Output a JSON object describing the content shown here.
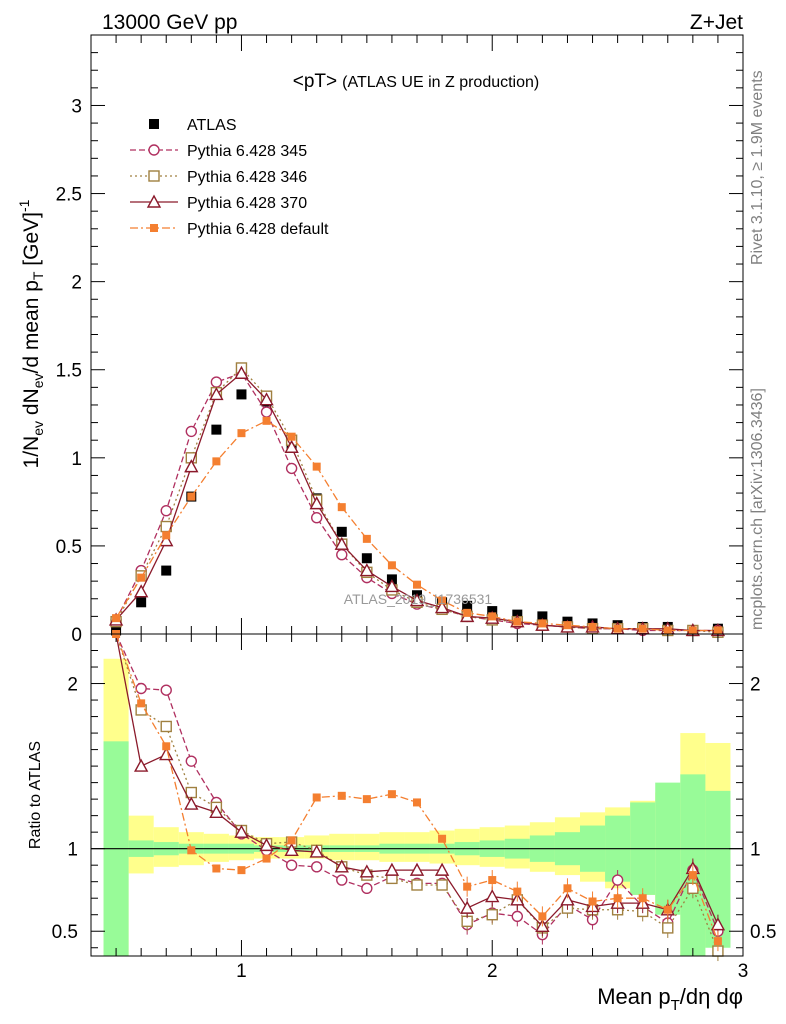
{
  "header": {
    "left": "13000 GeV pp",
    "right": "Z+Jet"
  },
  "side_text": {
    "rivet": "Rivet 3.1.10, ≥ 1.9M events",
    "mcplots": "mcplots.cern.ch [arXiv:1306.3436]"
  },
  "watermark": "ATLAS_2019_I1736531",
  "chart_data": [
    {
      "type": "scatter",
      "title": "<pT>",
      "subtitle": "(ATLAS UE in Z production)",
      "xlabel": "",
      "ylabel": "1/N_ev dN_ev/d mean p_T [GeV]^-1",
      "xlim": [
        0.4,
        3.0
      ],
      "ylim": [
        0,
        3.4
      ],
      "yticks": [
        0,
        0.5,
        1,
        1.5,
        2,
        2.5,
        3
      ],
      "ytick_labels": [
        "0",
        "0.5",
        "1",
        "1.5",
        "2",
        "2.5",
        "3"
      ],
      "x": [
        0.5,
        0.6,
        0.7,
        0.8,
        0.9,
        1.0,
        1.1,
        1.2,
        1.3,
        1.4,
        1.5,
        1.6,
        1.7,
        1.8,
        1.9,
        2.0,
        2.1,
        2.2,
        2.3,
        2.4,
        2.5,
        2.6,
        2.7,
        2.8,
        2.9
      ],
      "series": [
        {
          "name": "ATLAS",
          "style": "data",
          "color": "#000000",
          "values": [
            0.02,
            0.18,
            0.36,
            0.78,
            1.16,
            1.36,
            1.32,
            1.06,
            0.77,
            0.58,
            0.43,
            0.31,
            0.22,
            0.18,
            0.16,
            0.13,
            0.11,
            0.1,
            0.07,
            0.06,
            0.05,
            0.04,
            0.04,
            0.02,
            0.03
          ]
        },
        {
          "name": "Pythia 6.428 345",
          "style": "circle-dashed",
          "color": "#b03060",
          "values": [
            0.08,
            0.36,
            0.7,
            1.15,
            1.43,
            1.48,
            1.26,
            0.94,
            0.66,
            0.45,
            0.32,
            0.23,
            0.17,
            0.14,
            0.1,
            0.08,
            0.06,
            0.05,
            0.04,
            0.03,
            0.03,
            0.02,
            0.02,
            0.02,
            0.02
          ]
        },
        {
          "name": "Pythia 6.428 346",
          "style": "square-dotted",
          "color": "#a08040",
          "values": [
            0.07,
            0.33,
            0.61,
            1.0,
            1.37,
            1.51,
            1.35,
            1.1,
            0.76,
            0.51,
            0.35,
            0.25,
            0.18,
            0.14,
            0.1,
            0.08,
            0.07,
            0.05,
            0.04,
            0.03,
            0.03,
            0.03,
            0.02,
            0.02,
            0.01
          ]
        },
        {
          "name": "Pythia 6.428 370",
          "style": "triangle-solid",
          "color": "#8b1a2b",
          "values": [
            0.08,
            0.24,
            0.53,
            0.95,
            1.36,
            1.48,
            1.33,
            1.06,
            0.74,
            0.51,
            0.36,
            0.27,
            0.19,
            0.15,
            0.1,
            0.09,
            0.07,
            0.05,
            0.04,
            0.04,
            0.03,
            0.03,
            0.03,
            0.02,
            0.02
          ]
        },
        {
          "name": "Pythia 6.428 default",
          "style": "filled-square-dashdot",
          "color": "#f47f30",
          "values": [
            0.09,
            0.32,
            0.56,
            0.78,
            0.98,
            1.14,
            1.21,
            1.12,
            0.95,
            0.72,
            0.54,
            0.39,
            0.28,
            0.19,
            0.12,
            0.1,
            0.07,
            0.06,
            0.05,
            0.04,
            0.03,
            0.03,
            0.02,
            0.02,
            0.02
          ]
        }
      ]
    },
    {
      "type": "line",
      "title": "",
      "xlabel": "Mean p_T/dη dφ",
      "ylabel": "Ratio to ATLAS",
      "xlim": [
        0.4,
        3.0
      ],
      "ylim": [
        0.35,
        2.3
      ],
      "yticks": [
        0.5,
        1,
        2
      ],
      "ytick_labels": [
        "0.5",
        "1",
        "2"
      ],
      "xticks": [
        1,
        2,
        3
      ],
      "xtick_labels": [
        "1",
        "2",
        "3"
      ],
      "reference_line": 1,
      "band_x_edges": [
        0.45,
        0.55,
        0.65,
        0.75,
        0.85,
        0.95,
        1.05,
        1.15,
        1.25,
        1.35,
        1.45,
        1.55,
        1.65,
        1.75,
        1.85,
        1.95,
        2.05,
        2.15,
        2.25,
        2.35,
        2.45,
        2.55,
        2.65,
        2.75,
        2.85,
        2.95
      ],
      "band_outer": {
        "color": "#ffff8c",
        "lower": [
          0.35,
          0.85,
          0.89,
          0.9,
          0.92,
          0.93,
          0.94,
          0.94,
          0.94,
          0.93,
          0.93,
          0.92,
          0.92,
          0.91,
          0.9,
          0.89,
          0.88,
          0.86,
          0.84,
          0.8,
          0.76,
          0.72,
          0.66,
          0.35,
          0.46
        ],
        "upper": [
          2.15,
          1.2,
          1.13,
          1.1,
          1.09,
          1.08,
          1.07,
          1.07,
          1.08,
          1.09,
          1.09,
          1.1,
          1.1,
          1.11,
          1.12,
          1.13,
          1.14,
          1.16,
          1.19,
          1.22,
          1.25,
          1.29,
          1.34,
          1.7,
          1.64
        ]
      },
      "band_inner": {
        "color": "#98fb98",
        "lower": [
          0.35,
          0.95,
          0.96,
          0.97,
          0.97,
          0.97,
          0.98,
          0.98,
          0.98,
          0.98,
          0.98,
          0.97,
          0.97,
          0.97,
          0.96,
          0.95,
          0.94,
          0.92,
          0.9,
          0.86,
          0.8,
          0.72,
          0.6,
          0.35,
          0.4
        ],
        "upper": [
          1.65,
          1.05,
          1.04,
          1.03,
          1.03,
          1.03,
          1.02,
          1.02,
          1.02,
          1.02,
          1.02,
          1.03,
          1.03,
          1.03,
          1.04,
          1.05,
          1.06,
          1.08,
          1.1,
          1.14,
          1.2,
          1.28,
          1.4,
          1.45,
          1.35
        ]
      },
      "x": [
        0.5,
        0.6,
        0.7,
        0.8,
        0.9,
        1.0,
        1.1,
        1.2,
        1.3,
        1.4,
        1.5,
        1.6,
        1.7,
        1.8,
        1.9,
        2.0,
        2.1,
        2.2,
        2.3,
        2.4,
        2.5,
        2.6,
        2.7,
        2.8,
        2.9
      ],
      "series": [
        {
          "name": "Pythia 6.428 345",
          "style": "circle-dashed",
          "color": "#b03060",
          "values": [
            2.45,
            1.97,
            1.96,
            1.53,
            1.28,
            1.09,
            0.99,
            0.9,
            0.89,
            0.81,
            0.76,
            0.83,
            0.79,
            0.79,
            0.54,
            0.61,
            0.59,
            0.48,
            0.66,
            0.57,
            0.81,
            0.65,
            0.55,
            0.87,
            0.5
          ]
        },
        {
          "name": "Pythia 6.428 346",
          "style": "square-dotted",
          "color": "#a08040",
          "values": [
            2.4,
            1.84,
            1.74,
            1.34,
            1.25,
            1.11,
            1.03,
            1.04,
            0.99,
            0.89,
            0.84,
            0.82,
            0.78,
            0.78,
            0.56,
            0.6,
            0.69,
            0.52,
            0.64,
            0.63,
            0.63,
            0.62,
            0.52,
            0.76,
            0.38
          ]
        },
        {
          "name": "Pythia 6.428 370",
          "style": "triangle-solid",
          "color": "#8b1a2b",
          "values": [
            2.6,
            1.5,
            1.57,
            1.27,
            1.22,
            1.1,
            1.02,
            0.99,
            0.98,
            0.89,
            0.86,
            0.87,
            0.87,
            0.87,
            0.64,
            0.71,
            0.69,
            0.53,
            0.69,
            0.65,
            0.67,
            0.67,
            0.63,
            0.88,
            0.54
          ]
        },
        {
          "name": "Pythia 6.428 default",
          "style": "filled-square-dashdot",
          "color": "#f47f30",
          "values": [
            2.3,
            1.88,
            1.62,
            0.99,
            0.88,
            0.87,
            0.94,
            1.05,
            1.31,
            1.32,
            1.3,
            1.33,
            1.28,
            1.06,
            0.77,
            0.81,
            0.74,
            0.59,
            0.76,
            0.68,
            0.7,
            0.7,
            0.63,
            0.84,
            0.44
          ]
        }
      ]
    }
  ]
}
